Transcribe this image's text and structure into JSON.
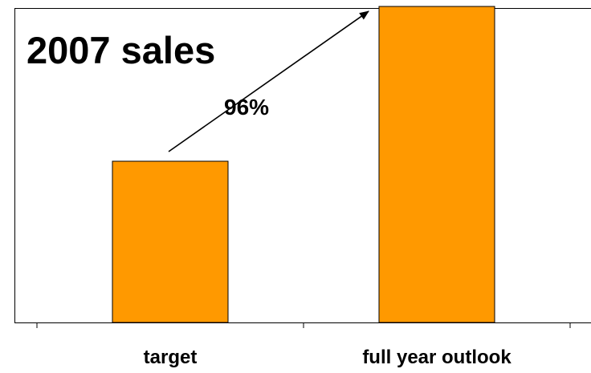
{
  "chart_data": {
    "type": "bar",
    "title": "2007 sales",
    "categories": [
      "target",
      "full year outlook"
    ],
    "values": [
      100,
      196
    ],
    "ylim": [
      0,
      200
    ],
    "grid": false,
    "legend": "none",
    "xlabel": "",
    "ylabel": "",
    "annotation": {
      "text": "96%",
      "from_category": "target",
      "to_category": "full year outlook"
    },
    "colors": {
      "bar_fill": "#FF9900",
      "bar_stroke": "#000000",
      "plot_border": "#000000"
    }
  }
}
